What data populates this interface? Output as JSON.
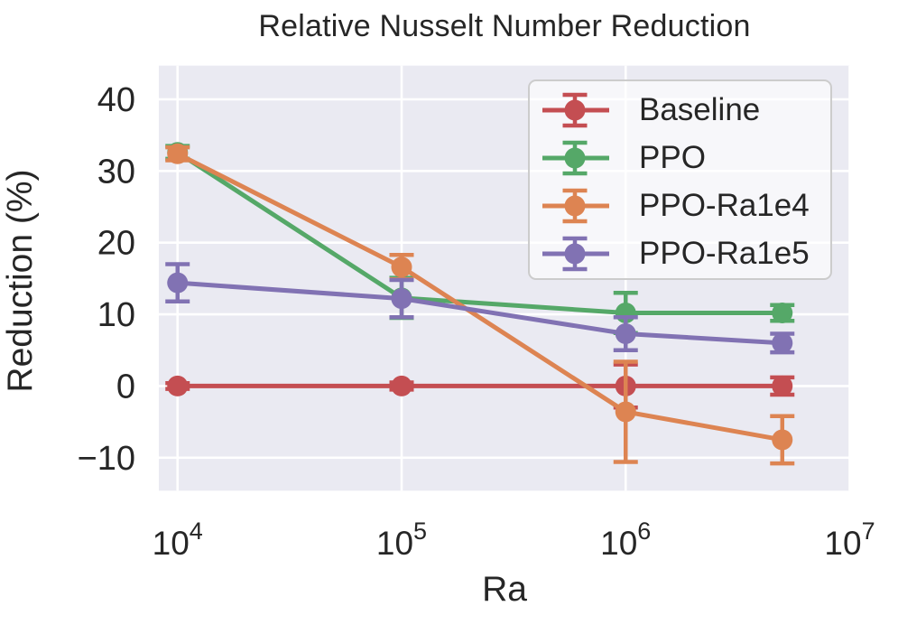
{
  "figure": {
    "title": "Relative Nusselt Number Reduction",
    "xlabel": "Ra",
    "ylabel": "Reduction (%)"
  },
  "chart_data": {
    "type": "line",
    "title": "Relative Nusselt Number Reduction",
    "xlabel": "Ra",
    "ylabel": "Reduction (%)",
    "x_scale": "log",
    "grid": true,
    "legend_position": "upper right",
    "x": [
      10000,
      100000,
      1000000,
      5000000
    ],
    "series": [
      {
        "name": "Baseline",
        "color": "#c44e52",
        "values": [
          0,
          0,
          0,
          0
        ],
        "errors": [
          0.4,
          0.5,
          3.0,
          1.2
        ]
      },
      {
        "name": "PPO",
        "color": "#55a868",
        "values": [
          32.6,
          12.3,
          10.2,
          10.2
        ],
        "errors": [
          0.9,
          2.8,
          2.8,
          1.1
        ]
      },
      {
        "name": "PPO-Ra1e4",
        "color": "#dd8452",
        "values": [
          32.4,
          16.6,
          -3.6,
          -7.5
        ],
        "errors": [
          0.9,
          1.7,
          7.0,
          3.3
        ]
      },
      {
        "name": "PPO-Ra1e5",
        "color": "#8172b3",
        "values": [
          14.4,
          12.2,
          7.3,
          6.0
        ],
        "errors": [
          2.6,
          2.6,
          2.3,
          1.3
        ]
      }
    ],
    "xlim": [
      8250,
      10000000
    ],
    "ylim": [
      -14.6,
      44.7
    ],
    "xtick_exponents": [
      4,
      5,
      6,
      7
    ],
    "xtick_base": "10",
    "yticks": [
      -10,
      0,
      10,
      20,
      30,
      40
    ]
  },
  "style": {
    "plot_background": "#eaeaf2",
    "grid_color": "#ffffff",
    "text_color": "#262626",
    "legend_border": "#cccccc"
  }
}
